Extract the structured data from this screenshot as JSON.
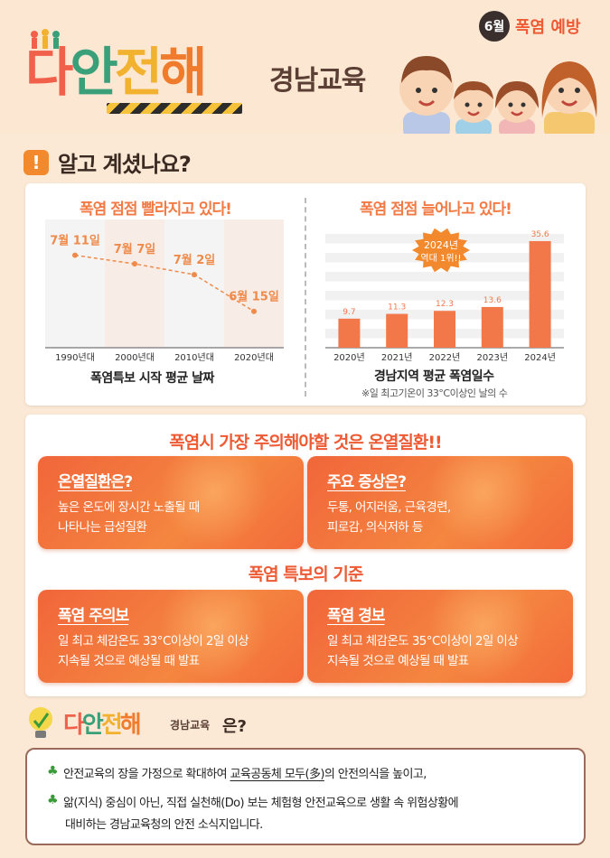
{
  "header": {
    "month": "6월",
    "topic": "폭염 예방",
    "logo_parts": [
      "다",
      "안",
      "전",
      "해"
    ],
    "logo_sub": "경남교육"
  },
  "section1": {
    "title": "알고 계셨나요?",
    "left_chart_caption": "폭염특보 시작 평균 날짜",
    "right_chart_caption": "경남지역 평균 폭염일수",
    "right_chart_note": "※일 최고기온이 33°C이상인 날의 수"
  },
  "section2": {
    "heading": "폭염시 가장 주의해야할 것은 온열질환!!",
    "box1_title": "온열질환은?",
    "box1_line1": "높은 온도에 장시간 노출될 때",
    "box1_line2": "나타나는 급성질환",
    "box2_title": "주요 증상은?",
    "box2_line1": "두통, 어지러움, 근육경련,",
    "box2_line2": "피로감, 의식저하 등",
    "subheading": "폭염 특보의 기준",
    "box3_title": "폭염 주의보",
    "box3_line1": "일 최고 체감온도 33°C이상이 2일 이상",
    "box3_line2": "지속될 것으로 예상될 때 발표",
    "box4_title": "폭염 경보",
    "box4_line1": "일 최고 체감온도 35°C이상이 2일 이상",
    "box4_line2": "지속될 것으로 예상될 때 발표"
  },
  "section3": {
    "logo_parts": [
      "다",
      "안",
      "전",
      "해"
    ],
    "logo_sub": "경남교육",
    "suffix": "은?",
    "line1_a": "안전교육의 장을 가정으로 확대하여 ",
    "line1_u": "교육공동체 모두(多)",
    "line1_b": "의 안전의식을 높이고,",
    "line2": "앎(지식) 중심이 아닌, 직접 실천해(Do) 보는 체험형 안전교육으로 생활 속 위험상황에",
    "line3": "대비하는 경남교육청의 안전 소식지입니다."
  },
  "chart_data": [
    {
      "type": "line",
      "title": "폭염 점점 빨라지고 있다!",
      "categories": [
        "1990년대",
        "2000년대",
        "2010년대",
        "2020년대"
      ],
      "values": [
        "7월 11일",
        "7월 7일",
        "7월 2일",
        "6월 15일"
      ],
      "day_of_year_values": [
        192,
        188,
        183,
        166
      ],
      "grid": false,
      "colors": {
        "line": "#ef8a4a",
        "band_a": "#f4f4f4",
        "band_b": "#f7ece6"
      }
    },
    {
      "type": "bar",
      "title": "폭염 점점 늘어나고 있다!",
      "categories": [
        "2020년",
        "2021년",
        "2022년",
        "2023년",
        "2024년"
      ],
      "values": [
        9.7,
        11.3,
        12.3,
        13.6,
        35.6
      ],
      "annotation": [
        "2024년",
        "역대 1위!!"
      ],
      "ylim": [
        0,
        38
      ],
      "grid": true,
      "colors": {
        "bar": "#f2784a",
        "badge": "#f28a2d"
      }
    }
  ]
}
